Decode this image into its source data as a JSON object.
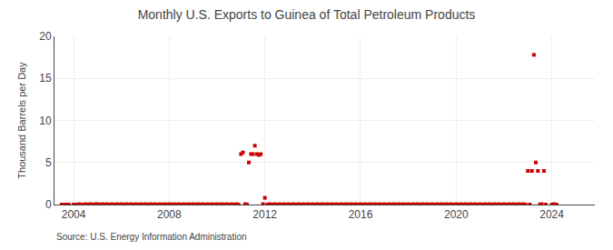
{
  "chart_data": {
    "type": "scatter",
    "title": "Monthly U.S. Exports to Guinea of Total Petroleum Products",
    "ylabel": "Thousand Barrels per Day",
    "annotations": [
      "Source: U.S. Energy Information Administration"
    ],
    "color": "#cc0000",
    "marker": "square",
    "grid": true,
    "xlim": [
      2003.2,
      2025.8
    ],
    "xticks": [
      2004,
      2008,
      2012,
      2016,
      2020,
      2024
    ],
    "ylim": [
      0,
      20
    ],
    "yticks": [
      0,
      5,
      10,
      15,
      20
    ],
    "x": [
      2003.5,
      2003.6,
      2003.7,
      2003.8,
      2004.0,
      2004.1,
      2004.2,
      2004.25,
      2004.4,
      2004.5,
      2004.6,
      2004.7,
      2004.8,
      2004.9,
      2004.95,
      2005.0,
      2005.1,
      2005.2,
      2005.3,
      2005.4,
      2005.5,
      2005.6,
      2005.7,
      2005.8,
      2005.9,
      2006.0,
      2006.1,
      2006.2,
      2006.3,
      2006.4,
      2006.5,
      2006.6,
      2006.7,
      2006.8,
      2006.9,
      2007.0,
      2007.1,
      2007.2,
      2007.3,
      2007.4,
      2007.5,
      2007.6,
      2007.7,
      2007.8,
      2007.9,
      2008.0,
      2008.1,
      2008.2,
      2008.3,
      2008.4,
      2008.5,
      2008.6,
      2008.7,
      2008.8,
      2008.9,
      2009.0,
      2009.1,
      2009.2,
      2009.3,
      2009.4,
      2009.5,
      2009.6,
      2009.7,
      2009.8,
      2009.9,
      2010.0,
      2010.1,
      2010.2,
      2010.3,
      2010.4,
      2010.5,
      2010.6,
      2010.7,
      2010.8,
      2010.9,
      2011.0,
      2011.08,
      2011.17,
      2011.25,
      2011.33,
      2011.42,
      2011.5,
      2011.58,
      2011.67,
      2011.75,
      2011.83,
      2011.92,
      2012.0,
      2012.1,
      2012.2,
      2012.3,
      2012.4,
      2012.5,
      2012.6,
      2012.7,
      2012.8,
      2012.9,
      2013.0,
      2013.1,
      2013.2,
      2013.3,
      2013.4,
      2013.5,
      2013.6,
      2013.7,
      2013.8,
      2013.9,
      2014.0,
      2014.1,
      2014.2,
      2014.3,
      2014.4,
      2014.5,
      2014.6,
      2014.7,
      2014.8,
      2014.9,
      2015.0,
      2015.1,
      2015.2,
      2015.3,
      2015.4,
      2015.5,
      2015.6,
      2015.7,
      2015.8,
      2015.9,
      2016.0,
      2016.1,
      2016.2,
      2016.3,
      2016.4,
      2016.5,
      2016.6,
      2016.7,
      2016.8,
      2016.9,
      2017.0,
      2017.1,
      2017.2,
      2017.3,
      2017.4,
      2017.5,
      2017.6,
      2017.7,
      2017.8,
      2017.9,
      2018.0,
      2018.1,
      2018.2,
      2018.3,
      2018.4,
      2018.5,
      2018.6,
      2018.7,
      2018.8,
      2018.9,
      2019.0,
      2019.1,
      2019.2,
      2019.3,
      2019.4,
      2019.5,
      2019.6,
      2019.7,
      2019.8,
      2019.9,
      2020.0,
      2020.1,
      2020.2,
      2020.3,
      2020.4,
      2020.5,
      2020.6,
      2020.7,
      2020.8,
      2020.9,
      2021.0,
      2021.1,
      2021.2,
      2021.3,
      2021.4,
      2021.5,
      2021.6,
      2021.7,
      2021.8,
      2021.9,
      2022.0,
      2022.1,
      2022.2,
      2022.3,
      2022.4,
      2022.5,
      2022.6,
      2022.7,
      2022.8,
      2022.9,
      2023.0,
      2023.08,
      2023.17,
      2023.25,
      2023.33,
      2023.42,
      2023.5,
      2023.58,
      2023.67,
      2023.75,
      2024.0,
      2024.1,
      2024.2
    ],
    "values": [
      0.0,
      0.0,
      0.0,
      0.0,
      0.0,
      0.0,
      0.0,
      0.05,
      0.0,
      0.05,
      0.0,
      0.05,
      0.0,
      0.05,
      0.0,
      0.05,
      0.0,
      0.05,
      0.0,
      0.05,
      0.0,
      0.05,
      0.0,
      0.05,
      0.0,
      0.05,
      0.0,
      0.05,
      0.0,
      0.05,
      0.0,
      0.05,
      0.0,
      0.05,
      0.0,
      0.05,
      0.0,
      0.05,
      0.0,
      0.05,
      0.0,
      0.05,
      0.0,
      0.05,
      0.0,
      0.05,
      0.0,
      0.05,
      0.0,
      0.05,
      0.0,
      0.05,
      0.0,
      0.05,
      0.0,
      0.05,
      0.0,
      0.05,
      0.0,
      0.05,
      0.0,
      0.05,
      0.0,
      0.05,
      0.0,
      0.05,
      0.0,
      0.05,
      0.0,
      0.05,
      0.0,
      0.05,
      0.0,
      0.05,
      0.0,
      6.0,
      6.2,
      0.05,
      0.0,
      5.0,
      6.0,
      6.0,
      7.0,
      6.0,
      5.9,
      6.0,
      0.05,
      0.8,
      0.0,
      0.05,
      0.0,
      0.05,
      0.0,
      0.05,
      0.0,
      0.05,
      0.0,
      0.05,
      0.0,
      0.05,
      0.0,
      0.05,
      0.0,
      0.05,
      0.0,
      0.05,
      0.0,
      0.05,
      0.0,
      0.05,
      0.0,
      0.05,
      0.0,
      0.05,
      0.0,
      0.05,
      0.0,
      0.05,
      0.0,
      0.05,
      0.0,
      0.05,
      0.0,
      0.05,
      0.0,
      0.05,
      0.0,
      0.05,
      0.0,
      0.05,
      0.0,
      0.05,
      0.0,
      0.05,
      0.0,
      0.05,
      0.0,
      0.05,
      0.0,
      0.05,
      0.0,
      0.05,
      0.0,
      0.05,
      0.0,
      0.05,
      0.0,
      0.05,
      0.0,
      0.05,
      0.0,
      0.05,
      0.0,
      0.05,
      0.0,
      0.05,
      0.0,
      0.05,
      0.0,
      0.05,
      0.0,
      0.05,
      0.0,
      0.05,
      0.0,
      0.05,
      0.0,
      0.05,
      0.0,
      0.05,
      0.0,
      0.05,
      0.0,
      0.05,
      0.0,
      0.05,
      0.0,
      0.05,
      0.0,
      0.05,
      0.0,
      0.05,
      0.0,
      0.05,
      0.0,
      0.05,
      0.0,
      0.05,
      0.0,
      0.05,
      0.0,
      0.05,
      0.0,
      0.05,
      0.0,
      0.05,
      0.0,
      4.0,
      0.0,
      4.0,
      17.8,
      5.0,
      4.0,
      0.0,
      0.05,
      4.0,
      0.0,
      0.0,
      0.05,
      0.0
    ]
  }
}
